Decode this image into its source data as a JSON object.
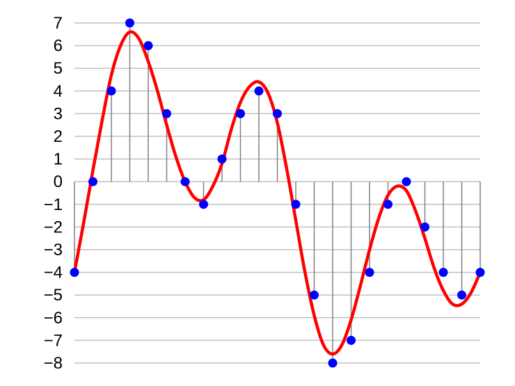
{
  "chart_data": {
    "type": "scatter",
    "title": "",
    "xlabel": "",
    "ylabel": "",
    "ylim": [
      -8,
      7
    ],
    "y_ticks": [
      7,
      6,
      5,
      4,
      3,
      2,
      1,
      0,
      -1,
      -2,
      -3,
      -4,
      -5,
      -6,
      -7,
      -8
    ],
    "y_tick_labels": [
      "7",
      "6",
      "5",
      "4",
      "3",
      "2",
      "1",
      "0",
      "−1",
      "−2",
      "−3",
      "−4",
      "−5",
      "−6",
      "−7",
      "−8"
    ],
    "grid": true,
    "sample_values": [
      -4,
      0,
      4,
      7,
      6,
      3,
      0,
      -1,
      1,
      3,
      4,
      3,
      -1,
      -5,
      -8,
      -7,
      -4,
      -1,
      0,
      -2,
      -4,
      -5,
      -4
    ],
    "curve_points": [
      [
        0,
        -4
      ],
      [
        0.5,
        -1.8
      ],
      [
        1,
        0.5
      ],
      [
        1.5,
        2.7
      ],
      [
        2,
        4.7
      ],
      [
        2.5,
        6.0
      ],
      [
        3,
        6.6
      ],
      [
        3.5,
        6.3
      ],
      [
        4,
        5.3
      ],
      [
        4.5,
        4.0
      ],
      [
        5,
        2.5
      ],
      [
        5.5,
        1.1
      ],
      [
        6,
        0.0
      ],
      [
        6.5,
        -0.7
      ],
      [
        7,
        -0.8
      ],
      [
        7.5,
        -0.2
      ],
      [
        8,
        0.8
      ],
      [
        8.5,
        2.3
      ],
      [
        9,
        3.5
      ],
      [
        9.5,
        4.2
      ],
      [
        10,
        4.4
      ],
      [
        10.5,
        3.9
      ],
      [
        11,
        2.6
      ],
      [
        11.5,
        0.6
      ],
      [
        12,
        -1.7
      ],
      [
        12.5,
        -4.0
      ],
      [
        13,
        -5.9
      ],
      [
        13.5,
        -7.2
      ],
      [
        14,
        -7.6
      ],
      [
        14.5,
        -7.2
      ],
      [
        15,
        -6.1
      ],
      [
        15.5,
        -4.6
      ],
      [
        16,
        -3.0
      ],
      [
        16.5,
        -1.6
      ],
      [
        17,
        -0.6
      ],
      [
        17.5,
        -0.2
      ],
      [
        18,
        -0.4
      ],
      [
        18.5,
        -1.3
      ],
      [
        19,
        -2.5
      ],
      [
        19.5,
        -3.8
      ],
      [
        20,
        -4.8
      ],
      [
        20.5,
        -5.4
      ],
      [
        21,
        -5.4
      ],
      [
        21.5,
        -4.9
      ],
      [
        22,
        -4
      ]
    ],
    "colors": {
      "curve": "#ff0000",
      "points": "#0000ff",
      "stems": "#808080",
      "grid": "#c0c0c0"
    }
  }
}
